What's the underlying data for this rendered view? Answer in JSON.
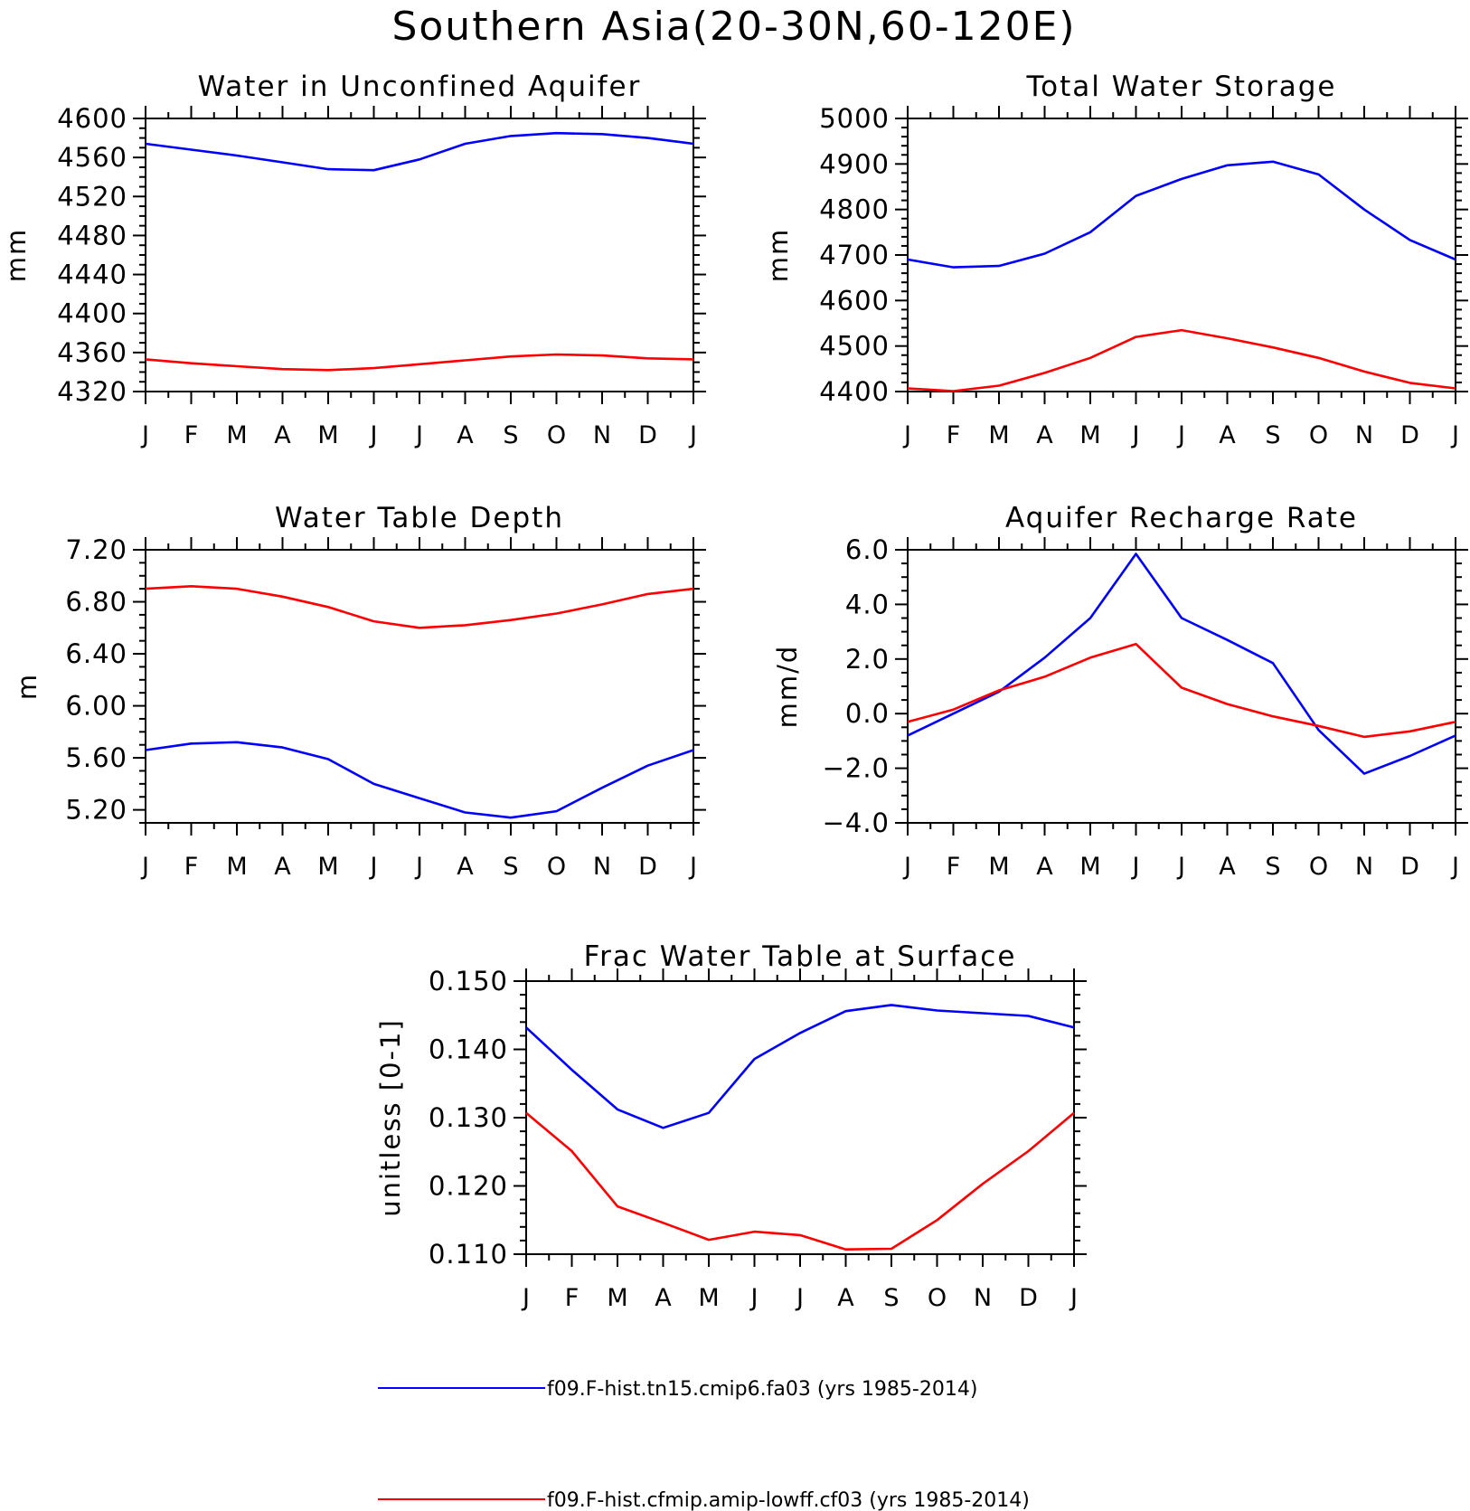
{
  "title": "Southern Asia(20-30N,60-120E)",
  "series_colors": [
    "#0000ff",
    "#ff0000"
  ],
  "legend": [
    {
      "label": "f09.F-hist.tn15.cmip6.fa03 (yrs 1985-2014)",
      "color": "#0000ff"
    },
    {
      "label": "f09.F-hist.cfmip.amip-lowff.cf03 (yrs 1985-2014)",
      "color": "#ff0000"
    }
  ],
  "chart_data": [
    {
      "type": "line",
      "title": "Water in Unconfined Aquifer",
      "ylabel": "mm",
      "categories": [
        "J",
        "F",
        "M",
        "A",
        "M",
        "J",
        "J",
        "A",
        "S",
        "O",
        "N",
        "D",
        "J"
      ],
      "ylim": [
        4320,
        4600
      ],
      "yticks": [
        4320,
        4360,
        4400,
        4440,
        4480,
        4520,
        4560,
        4600
      ],
      "ytick_labels": [
        "4320",
        "4360",
        "4400",
        "4440",
        "4480",
        "4520",
        "4560",
        "4600"
      ],
      "series": [
        {
          "values": [
            4574,
            4568,
            4562,
            4555,
            4548,
            4547,
            4558,
            4574,
            4582,
            4585,
            4584,
            4580,
            4574
          ]
        },
        {
          "values": [
            4353,
            4349,
            4346,
            4343,
            4342,
            4344,
            4348,
            4352,
            4356,
            4358,
            4357,
            4354,
            4353
          ]
        }
      ]
    },
    {
      "type": "line",
      "title": "Total Water Storage",
      "ylabel": "mm",
      "categories": [
        "J",
        "F",
        "M",
        "A",
        "M",
        "J",
        "J",
        "A",
        "S",
        "O",
        "N",
        "D",
        "J"
      ],
      "ylim": [
        4400,
        5000
      ],
      "yticks": [
        4400,
        4500,
        4600,
        4700,
        4800,
        4900,
        5000
      ],
      "ytick_labels": [
        "4400",
        "4500",
        "4600",
        "4700",
        "4800",
        "4900",
        "5000"
      ],
      "series": [
        {
          "values": [
            4690,
            4673,
            4676,
            4703,
            4750,
            4830,
            4867,
            4897,
            4905,
            4877,
            4800,
            4733,
            4690
          ]
        },
        {
          "values": [
            4407,
            4401,
            4413,
            4441,
            4474,
            4520,
            4535,
            4517,
            4497,
            4474,
            4444,
            4419,
            4407
          ]
        }
      ]
    },
    {
      "type": "line",
      "title": "Water Table Depth",
      "ylabel": "m",
      "categories": [
        "J",
        "F",
        "M",
        "A",
        "M",
        "J",
        "J",
        "A",
        "S",
        "O",
        "N",
        "D",
        "J"
      ],
      "ylim": [
        5.1,
        7.2
      ],
      "yticks": [
        5.2,
        5.6,
        6.0,
        6.4,
        6.8,
        7.2
      ],
      "ytick_labels": [
        "5.20",
        "5.60",
        "6.00",
        "6.40",
        "6.80",
        "7.20"
      ],
      "series": [
        {
          "values": [
            5.66,
            5.71,
            5.72,
            5.68,
            5.59,
            5.4,
            5.29,
            5.18,
            5.14,
            5.19,
            5.37,
            5.54,
            5.66
          ]
        },
        {
          "values": [
            6.9,
            6.92,
            6.9,
            6.84,
            6.76,
            6.65,
            6.6,
            6.62,
            6.66,
            6.71,
            6.78,
            6.86,
            6.9
          ]
        }
      ]
    },
    {
      "type": "line",
      "title": "Aquifer Recharge Rate",
      "ylabel": "mm/d",
      "categories": [
        "J",
        "F",
        "M",
        "A",
        "M",
        "J",
        "J",
        "A",
        "S",
        "O",
        "N",
        "D",
        "J"
      ],
      "ylim": [
        -4,
        6
      ],
      "yticks": [
        -4,
        -2,
        0,
        2,
        4,
        6
      ],
      "ytick_labels": [
        "−4.0",
        "−2.0",
        "0.0",
        "2.0",
        "4.0",
        "6.0"
      ],
      "series": [
        {
          "values": [
            -0.8,
            0.0,
            0.8,
            2.05,
            3.5,
            5.85,
            3.5,
            2.7,
            1.85,
            -0.6,
            -2.2,
            -1.55,
            -0.8
          ]
        },
        {
          "values": [
            -0.3,
            0.15,
            0.85,
            1.35,
            2.05,
            2.55,
            0.95,
            0.35,
            -0.1,
            -0.45,
            -0.85,
            -0.65,
            -0.3
          ]
        }
      ]
    },
    {
      "type": "line",
      "title": "Frac Water Table at Surface",
      "ylabel": "unitless [0-1]",
      "categories": [
        "J",
        "F",
        "M",
        "A",
        "M",
        "J",
        "J",
        "A",
        "S",
        "O",
        "N",
        "D",
        "J"
      ],
      "ylim": [
        0.11,
        0.15
      ],
      "yticks": [
        0.11,
        0.12,
        0.13,
        0.14,
        0.15
      ],
      "ytick_labels": [
        "0.110",
        "0.120",
        "0.130",
        "0.140",
        "0.150"
      ],
      "series": [
        {
          "values": [
            0.1432,
            0.137,
            0.1312,
            0.1285,
            0.1307,
            0.1386,
            0.1424,
            0.1456,
            0.1465,
            0.1457,
            0.1453,
            0.1449,
            0.1432
          ]
        },
        {
          "values": [
            0.1307,
            0.1251,
            0.117,
            0.1146,
            0.1121,
            0.1133,
            0.1128,
            0.1107,
            0.1108,
            0.115,
            0.1203,
            0.1251,
            0.1307
          ]
        }
      ]
    }
  ]
}
